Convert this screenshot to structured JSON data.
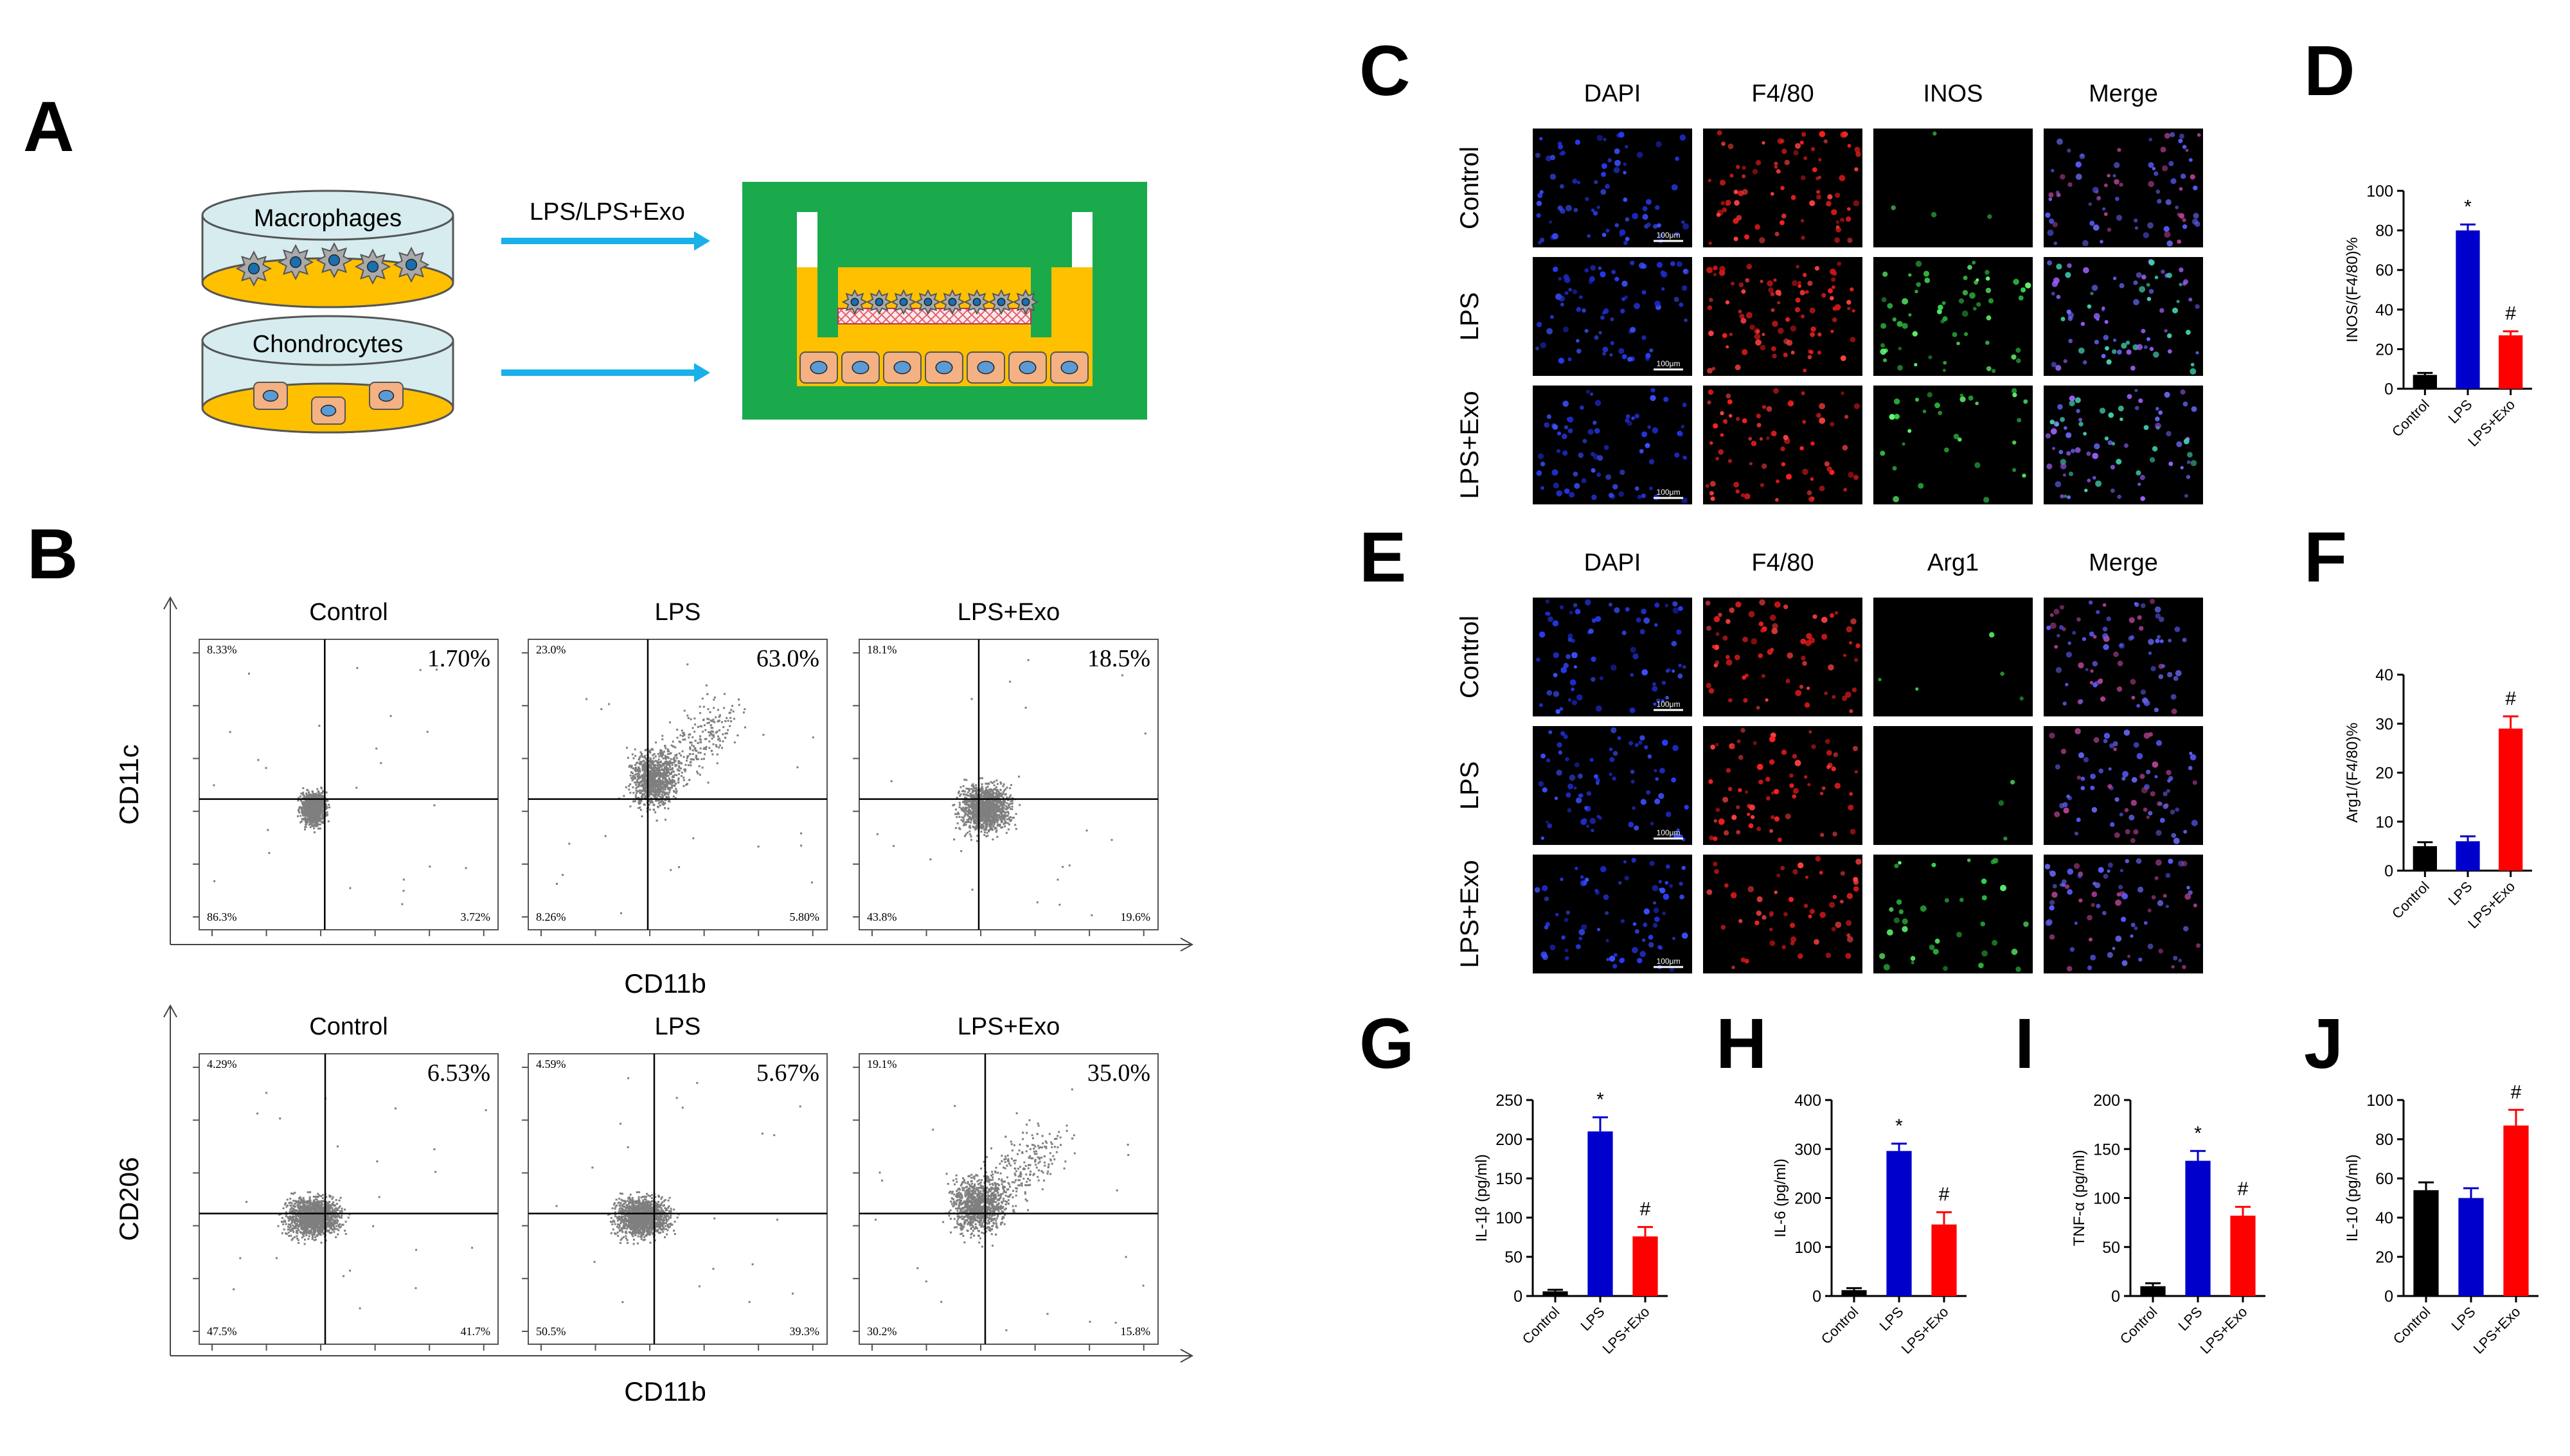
{
  "panels": {
    "A": "A",
    "B": "B",
    "C": "C",
    "D": "D",
    "E": "E",
    "F": "F",
    "G": "G",
    "H": "H",
    "I": "I",
    "J": "J"
  },
  "schematic": {
    "macrophages": "Macrophages",
    "chondrocytes": "Chondrocytes",
    "treatment": "LPS/LPS+Exo"
  },
  "flow": {
    "rows": [
      {
        "ylabel": "CD11c",
        "xlabel": "CD11b",
        "plots": [
          {
            "title": "Control",
            "ul": "8.33%",
            "ur": "1.70%",
            "ll": "86.3%",
            "lr": "3.72%",
            "spread": 0
          },
          {
            "title": "LPS",
            "ul": "23.0%",
            "ur": "63.0%",
            "ll": "8.26%",
            "lr": "5.80%",
            "spread": 1
          },
          {
            "title": "LPS+Exo",
            "ul": "18.1%",
            "ur": "18.5%",
            "ll": "43.8%",
            "lr": "19.6%",
            "spread": 2
          }
        ]
      },
      {
        "ylabel": "CD206",
        "xlabel": "CD11b",
        "plots": [
          {
            "title": "Control",
            "ul": "4.29%",
            "ur": "6.53%",
            "ll": "47.5%",
            "lr": "41.7%",
            "spread": 3
          },
          {
            "title": "LPS",
            "ul": "4.59%",
            "ur": "5.67%",
            "ll": "50.5%",
            "lr": "39.3%",
            "spread": 3
          },
          {
            "title": "LPS+Exo",
            "ul": "19.1%",
            "ur": "35.0%",
            "ll": "30.2%",
            "lr": "15.8%",
            "spread": 4
          }
        ]
      }
    ]
  },
  "micro": {
    "C": {
      "cols": [
        "DAPI",
        "F4/80",
        "INOS",
        "Merge"
      ],
      "rows": [
        "Control",
        "LPS",
        "LPS+Exo"
      ],
      "scale": "100μm"
    },
    "E": {
      "cols": [
        "DAPI",
        "F4/80",
        "Arg1",
        "Merge"
      ],
      "rows": [
        "Control",
        "LPS",
        "LPS+Exo"
      ],
      "scale": "100μm"
    }
  },
  "chart_data": [
    {
      "panel": "D",
      "type": "bar",
      "ylabel": "INOS/(F4/80)%",
      "categories": [
        "Control",
        "LPS",
        "LPS+Exo"
      ],
      "values": [
        7,
        80,
        27
      ],
      "errors": [
        1,
        3,
        2
      ],
      "ylim": [
        0,
        100
      ],
      "yticks": [
        0,
        20,
        40,
        60,
        80,
        100
      ],
      "marks": [
        "",
        "*",
        "#"
      ],
      "colors": [
        "#000000",
        "#0000cc",
        "#ff0000"
      ]
    },
    {
      "panel": "F",
      "type": "bar",
      "ylabel": "Arg1/(F4/80)%",
      "categories": [
        "Control",
        "LPS",
        "LPS+Exo"
      ],
      "values": [
        5,
        6,
        29
      ],
      "errors": [
        0.8,
        1,
        2.5
      ],
      "ylim": [
        0,
        40
      ],
      "yticks": [
        0,
        10,
        20,
        30,
        40
      ],
      "marks": [
        "",
        "",
        "#"
      ],
      "colors": [
        "#000000",
        "#0000cc",
        "#ff0000"
      ]
    },
    {
      "panel": "G",
      "type": "bar",
      "ylabel": "IL-1β (pg/ml)",
      "categories": [
        "Control",
        "LPS",
        "LPS+Exo"
      ],
      "values": [
        6,
        210,
        76
      ],
      "errors": [
        2,
        18,
        12
      ],
      "ylim": [
        0,
        250
      ],
      "yticks": [
        0,
        50,
        100,
        150,
        200,
        250
      ],
      "marks": [
        "",
        "*",
        "#"
      ],
      "colors": [
        "#000000",
        "#0000cc",
        "#ff0000"
      ]
    },
    {
      "panel": "H",
      "type": "bar",
      "ylabel": "IL-6 (pg/ml)",
      "categories": [
        "Control",
        "LPS",
        "LPS+Exo"
      ],
      "values": [
        12,
        296,
        146
      ],
      "errors": [
        4,
        15,
        25
      ],
      "ylim": [
        0,
        400
      ],
      "yticks": [
        0,
        100,
        200,
        300,
        400
      ],
      "marks": [
        "",
        "*",
        "#"
      ],
      "colors": [
        "#000000",
        "#0000cc",
        "#ff0000"
      ]
    },
    {
      "panel": "I",
      "type": "bar",
      "ylabel": "TNF-α (pg/ml)",
      "categories": [
        "Control",
        "LPS",
        "LPS+Exo"
      ],
      "values": [
        10,
        138,
        82
      ],
      "errors": [
        3,
        10,
        9
      ],
      "ylim": [
        0,
        200
      ],
      "yticks": [
        0,
        50,
        100,
        150,
        200
      ],
      "marks": [
        "",
        "*",
        "#"
      ],
      "colors": [
        "#000000",
        "#0000cc",
        "#ff0000"
      ]
    },
    {
      "panel": "J",
      "type": "bar",
      "ylabel": "IL-10 (pg/ml)",
      "categories": [
        "Control",
        "LPS",
        "LPS+Exo"
      ],
      "values": [
        54,
        50,
        87
      ],
      "errors": [
        4,
        5,
        8
      ],
      "ylim": [
        0,
        100
      ],
      "yticks": [
        0,
        20,
        40,
        60,
        80,
        100
      ],
      "marks": [
        "",
        "",
        "#"
      ],
      "colors": [
        "#000000",
        "#0000cc",
        "#ff0000"
      ]
    }
  ],
  "colors": {
    "blue_arrow": "#1ab0ea",
    "green": "#1aaa4b",
    "yellow": "#ffc000",
    "dish_top": "#d6ecef",
    "dot": "#7f7f7f"
  }
}
